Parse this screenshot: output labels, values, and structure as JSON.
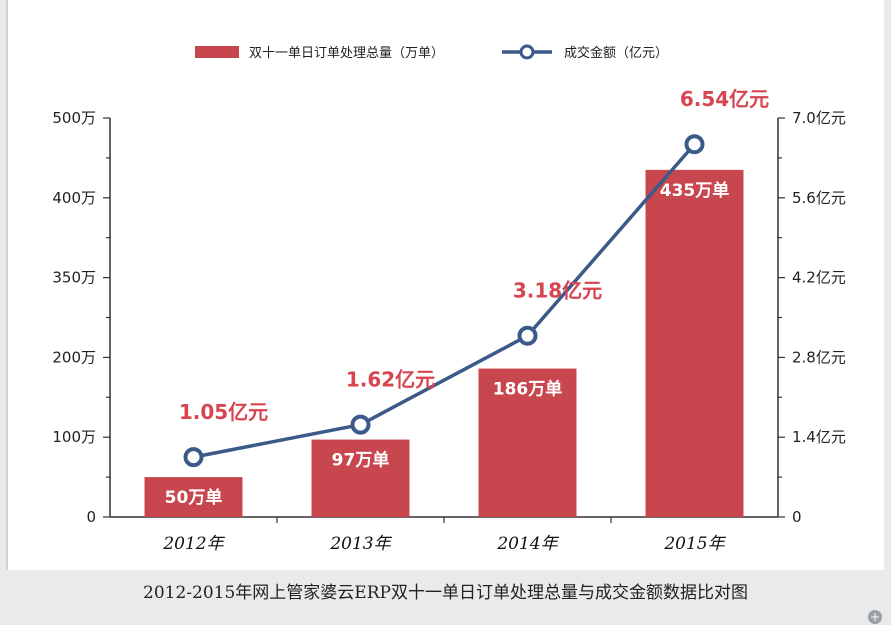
{
  "chart_data": {
    "type": "bar",
    "categories": [
      "2012年",
      "2013年",
      "2014年",
      "2015年"
    ],
    "series": [
      {
        "name": "双十一单日订单处理总量（万单）",
        "kind": "bar",
        "axis": "left",
        "values": [
          50,
          97,
          186,
          435
        ],
        "labels": [
          "50万单",
          "97万单",
          "186万单",
          "435万单"
        ],
        "color": "#c8474e"
      },
      {
        "name": "成交金额（亿元）",
        "kind": "line",
        "axis": "right",
        "values": [
          1.05,
          1.62,
          3.18,
          6.54
        ],
        "labels": [
          "1.05亿元",
          "1.62亿元",
          "3.18亿元",
          "6.54亿元"
        ],
        "color": "#3b5a8a"
      }
    ],
    "left_axis": {
      "ticks": [
        "0",
        "100万",
        "200万",
        "350万",
        "400万",
        "500万"
      ]
    },
    "right_axis": {
      "ticks": [
        "0",
        "1.4亿元",
        "2.8亿元",
        "4.2亿元",
        "5.6亿元",
        "7.0亿元"
      ],
      "ylim": [
        0,
        7.0
      ]
    },
    "legend": {
      "position": "top"
    },
    "grid": false,
    "caption": "2012-2015年网上管家婆云ERP双十一单日订单处理总量与成交金额数据比对图"
  },
  "colors": {
    "bar": "#c8474e",
    "line": "#3b5a8a",
    "label_red": "#d64550"
  },
  "ui": {
    "plus_symbol": "+"
  }
}
